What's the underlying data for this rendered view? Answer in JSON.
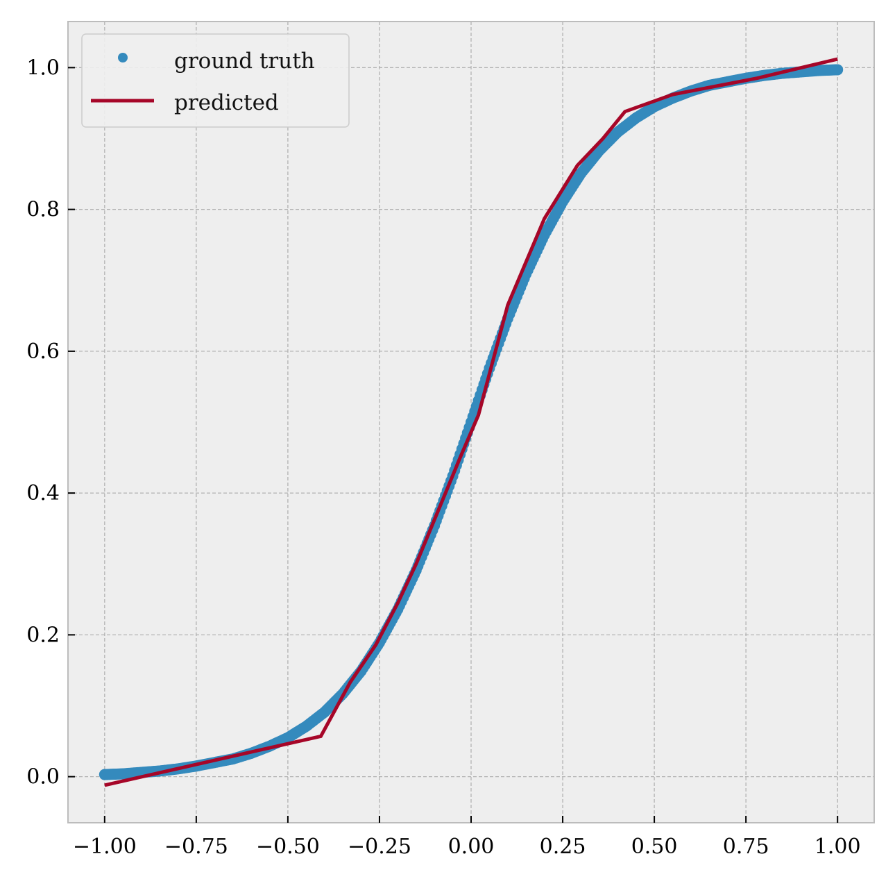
{
  "chart_data": {
    "type": "scatter",
    "title": "",
    "xlabel": "",
    "ylabel": "",
    "xlim": [
      -1.1,
      1.1
    ],
    "ylim": [
      -0.065,
      1.065
    ],
    "xticks": [
      -1.0,
      -0.75,
      -0.5,
      -0.25,
      0.0,
      0.25,
      0.5,
      0.75,
      1.0
    ],
    "xtick_labels": [
      "−1.00",
      "−0.75",
      "−0.50",
      "−0.25",
      "0.00",
      "0.25",
      "0.50",
      "0.75",
      "1.00"
    ],
    "yticks": [
      0.0,
      0.2,
      0.4,
      0.6,
      0.8,
      1.0
    ],
    "ytick_labels": [
      "0.0",
      "0.2",
      "0.4",
      "0.6",
      "0.8",
      "1.0"
    ],
    "grid": true,
    "grid_style": "dashed",
    "legend_position": "top-left",
    "background_color": "#eeeeee",
    "series": [
      {
        "name": "ground truth",
        "kind": "markers",
        "color": "#348abd",
        "points": [
          [
            -1.0,
            0.003
          ],
          [
            -0.95,
            0.004
          ],
          [
            -0.9,
            0.006
          ],
          [
            -0.85,
            0.008
          ],
          [
            -0.8,
            0.011
          ],
          [
            -0.75,
            0.015
          ],
          [
            -0.7,
            0.02
          ],
          [
            -0.65,
            0.025
          ],
          [
            -0.6,
            0.033
          ],
          [
            -0.55,
            0.043
          ],
          [
            -0.5,
            0.055
          ],
          [
            -0.45,
            0.071
          ],
          [
            -0.4,
            0.091
          ],
          [
            -0.35,
            0.117
          ],
          [
            -0.3,
            0.149
          ],
          [
            -0.25,
            0.189
          ],
          [
            -0.2,
            0.236
          ],
          [
            -0.15,
            0.291
          ],
          [
            -0.1,
            0.354
          ],
          [
            -0.05,
            0.424
          ],
          [
            0.0,
            0.5
          ],
          [
            0.05,
            0.576
          ],
          [
            0.1,
            0.646
          ],
          [
            0.15,
            0.709
          ],
          [
            0.2,
            0.764
          ],
          [
            0.25,
            0.811
          ],
          [
            0.3,
            0.851
          ],
          [
            0.35,
            0.883
          ],
          [
            0.4,
            0.909
          ],
          [
            0.45,
            0.929
          ],
          [
            0.5,
            0.945
          ],
          [
            0.55,
            0.957
          ],
          [
            0.6,
            0.967
          ],
          [
            0.65,
            0.975
          ],
          [
            0.7,
            0.98
          ],
          [
            0.75,
            0.985
          ],
          [
            0.8,
            0.989
          ],
          [
            0.85,
            0.992
          ],
          [
            0.9,
            0.994
          ],
          [
            0.95,
            0.996
          ],
          [
            1.0,
            0.997
          ]
        ]
      },
      {
        "name": "predicted",
        "kind": "line",
        "color": "#a60628",
        "points": [
          [
            -1.0,
            -0.012
          ],
          [
            -0.41,
            0.057
          ],
          [
            -0.33,
            0.133
          ],
          [
            -0.26,
            0.186
          ],
          [
            -0.2,
            0.245
          ],
          [
            -0.15,
            0.3
          ],
          [
            -0.09,
            0.375
          ],
          [
            -0.03,
            0.45
          ],
          [
            0.02,
            0.51
          ],
          [
            0.1,
            0.665
          ],
          [
            0.2,
            0.787
          ],
          [
            0.29,
            0.862
          ],
          [
            0.36,
            0.9
          ],
          [
            0.42,
            0.938
          ],
          [
            0.55,
            0.962
          ],
          [
            0.78,
            0.985
          ],
          [
            1.0,
            1.012
          ]
        ]
      }
    ]
  }
}
